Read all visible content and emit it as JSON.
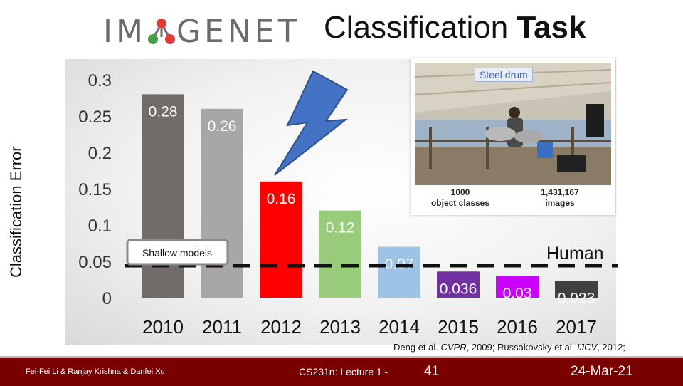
{
  "header": {
    "logo_text_left": "IM",
    "logo_text_right": "GENET",
    "title_regular": "Classification",
    "title_bold": "Task"
  },
  "chart_data": {
    "type": "bar",
    "categories": [
      "2010",
      "2011",
      "2012",
      "2013",
      "2014",
      "2015",
      "2016",
      "2017"
    ],
    "values": [
      0.28,
      0.26,
      0.16,
      0.12,
      0.07,
      0.036,
      0.03,
      0.023
    ],
    "value_labels": [
      "0.28",
      "0.26",
      "0.16",
      "0.12",
      "0.07",
      "0.036",
      "0.03",
      "0.023"
    ],
    "bar_colors": [
      "#716b69",
      "#a8a6a6",
      "#ff0000",
      "#99cc7a",
      "#9dc3e6",
      "#7030a0",
      "#cc00ff",
      "#404040"
    ],
    "ylabel": "Classification Error",
    "yticks": [
      "0",
      "0.05",
      "0.1",
      "0.15",
      "0.2",
      "0.25",
      "0.3"
    ],
    "ylim": [
      0,
      0.3
    ],
    "reference_line": {
      "label": "Human",
      "value": 0.051
    },
    "annotation": "Shallow models",
    "grid": false
  },
  "inset": {
    "tag": "Steel drum",
    "classes_count": "1000",
    "classes_label": "object classes",
    "images_count": "1,431,167",
    "images_label": "images"
  },
  "citation": {
    "part1": "Deng et al. ",
    "venue1": "CVPR",
    "part2": ", 2009; Russakovsky et al. ",
    "venue2": "IJCV",
    "part3": ", 2012;"
  },
  "footer": {
    "authors": "Fei-Fei Li & Ranjay Krishna & Danfei Xu",
    "course": "CS231n: Lecture 1 -",
    "page": "41",
    "date": "24-Mar-21"
  }
}
